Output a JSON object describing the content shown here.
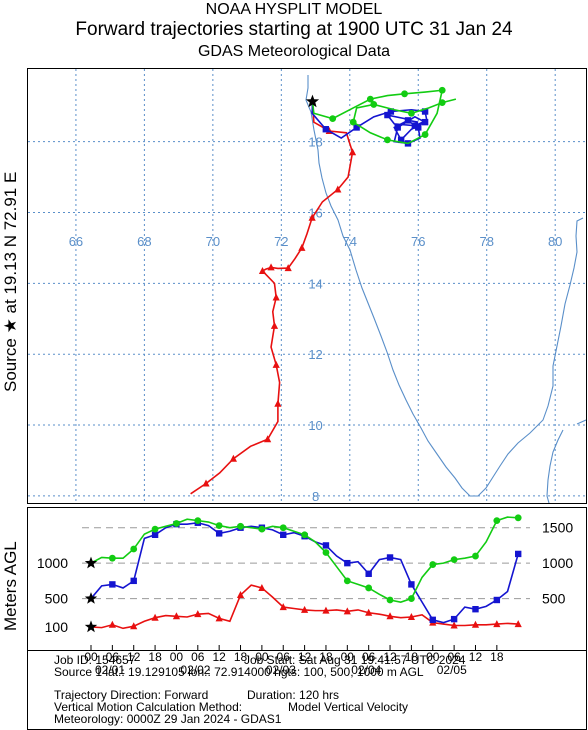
{
  "header": {
    "title_line1": "NOAA HYSPLIT MODEL",
    "title_line2": "Forward trajectories starting at 1900 UTC 31 Jan 24",
    "title_line3": "GDAS Meteorological Data"
  },
  "side_labels": {
    "source_label": "Source ★ at  19.13 N  72.91 E",
    "height_axis_label": "Meters AGL"
  },
  "colors": {
    "h100": "#e81010",
    "h500": "#1414d0",
    "h1000": "#12cc12",
    "grid": "#5a8fc9",
    "coast": "#5a8fc9"
  },
  "chart_data": [
    {
      "type": "line",
      "name": "trajectory-map",
      "xlim": [
        64.6,
        80.9
      ],
      "ylim": [
        7.8,
        20.05
      ],
      "longitude_ticks": [
        66,
        68,
        70,
        72,
        74,
        76,
        78,
        80
      ],
      "longitude_labels": [
        "66",
        "68",
        "70",
        "72",
        "74",
        "76",
        "78",
        "80"
      ],
      "latitude_ticks": [
        8,
        10,
        12,
        14,
        16,
        18
      ],
      "latitude_labels": [
        "8",
        "10",
        "12",
        "14",
        "16",
        "18"
      ],
      "source": {
        "lat": 19.13,
        "lon": 72.91
      },
      "series": [
        {
          "key": "h100",
          "lon": [
            72.91,
            72.95,
            73.4,
            73.9,
            74.08,
            73.95,
            73.65,
            73.2,
            72.9,
            72.75,
            72.6,
            72.4,
            72.2,
            71.9,
            71.7,
            71.55,
            71.45,
            71.8,
            71.85,
            71.75,
            71.8,
            71.7,
            71.85,
            71.95,
            71.9,
            71.9,
            71.6,
            71.1,
            70.6,
            70.2,
            69.8,
            69.35
          ],
          "lat": [
            19.13,
            18.55,
            18.3,
            18.25,
            17.7,
            17.0,
            16.65,
            16.3,
            15.85,
            15.4,
            15.0,
            14.7,
            14.43,
            14.42,
            14.45,
            14.4,
            14.35,
            14.0,
            13.6,
            13.2,
            12.8,
            12.2,
            11.7,
            11.2,
            10.6,
            10.1,
            9.6,
            9.4,
            9.05,
            8.65,
            8.35,
            8.06
          ]
        },
        {
          "key": "h500",
          "lon": [
            72.91,
            72.9,
            73.3,
            73.75,
            74.2,
            74.7,
            75.2,
            75.8,
            76.2,
            76.25,
            75.9,
            75.3,
            75.1,
            75.6,
            76.0,
            76.05,
            75.7,
            75.3,
            75.4,
            75.9,
            76.2,
            75.8,
            75.5,
            75.3,
            75.7,
            76.0
          ],
          "lat": [
            19.13,
            18.8,
            18.35,
            18.1,
            18.4,
            18.7,
            18.85,
            18.9,
            18.85,
            18.6,
            18.45,
            18.5,
            18.75,
            18.65,
            18.4,
            18.1,
            17.95,
            18.0,
            18.4,
            18.7,
            18.55,
            18.35,
            18.05,
            18.4,
            18.6,
            18.55
          ]
        },
        {
          "key": "h1000",
          "lon": [
            72.91,
            72.95,
            73.5,
            74.1,
            74.6,
            75.1,
            75.6,
            76.2,
            76.7,
            76.55,
            76.2,
            75.7,
            75.1,
            74.6,
            74.1,
            74.2,
            74.7,
            75.3,
            75.8,
            76.3,
            76.7,
            77.1
          ],
          "lat": [
            19.13,
            18.8,
            18.65,
            18.95,
            19.2,
            19.3,
            19.35,
            19.4,
            19.45,
            18.8,
            18.2,
            17.95,
            18.05,
            18.25,
            18.55,
            18.95,
            19.05,
            18.9,
            18.8,
            18.95,
            19.1,
            19.2
          ]
        }
      ]
    },
    {
      "type": "line",
      "name": "height-profile",
      "ylabel": "Meters AGL",
      "ylim": [
        0,
        1750
      ],
      "x_tick_labels": [
        "00",
        "06",
        "12",
        "18",
        "00",
        "06",
        "12",
        "18",
        "00",
        "06",
        "12",
        "18",
        "00",
        "06",
        "12",
        "18",
        "00",
        "06",
        "12",
        "18"
      ],
      "date_labels": [
        "02/01",
        "02/02",
        "02/03",
        "02/04",
        "02/05"
      ],
      "y_left_labels": [
        "1000",
        "500",
        "100"
      ],
      "y_right_labels": [
        "1500",
        "1000",
        "500"
      ],
      "series": [
        {
          "key": "h100",
          "hours_after_start": [
            0,
            3,
            6,
            9,
            12,
            15,
            18,
            21,
            24,
            27,
            30,
            33,
            36,
            39,
            42,
            45,
            48,
            51,
            54,
            57,
            60,
            63,
            66,
            69,
            72,
            75,
            78,
            81,
            84,
            87,
            90,
            93,
            96,
            99,
            102,
            105,
            108,
            111,
            114,
            117,
            120
          ],
          "values": [
            100,
            90,
            130,
            80,
            110,
            180,
            230,
            260,
            250,
            240,
            280,
            290,
            220,
            180,
            550,
            690,
            650,
            520,
            380,
            360,
            340,
            330,
            330,
            340,
            320,
            340,
            300,
            280,
            250,
            230,
            240,
            270,
            160,
            140,
            120,
            120,
            130,
            130,
            140,
            150,
            140
          ]
        },
        {
          "key": "h500",
          "hours_after_start": [
            0,
            3,
            6,
            9,
            12,
            15,
            18,
            21,
            24,
            27,
            30,
            33,
            36,
            39,
            42,
            45,
            48,
            51,
            54,
            57,
            60,
            63,
            66,
            69,
            72,
            75,
            78,
            81,
            84,
            87,
            90,
            93,
            96,
            99,
            102,
            105,
            108,
            111,
            114,
            117,
            120
          ],
          "values": [
            500,
            680,
            700,
            650,
            750,
            1350,
            1400,
            1500,
            1550,
            1550,
            1570,
            1530,
            1420,
            1450,
            1500,
            1520,
            1500,
            1470,
            1400,
            1430,
            1380,
            1300,
            1250,
            1100,
            1000,
            1020,
            850,
            1050,
            1080,
            1050,
            700,
            450,
            200,
            160,
            210,
            380,
            350,
            390,
            480,
            600,
            1130
          ]
        },
        {
          "key": "h1000",
          "hours_after_start": [
            0,
            3,
            6,
            9,
            12,
            15,
            18,
            21,
            24,
            27,
            30,
            33,
            36,
            39,
            42,
            45,
            48,
            51,
            54,
            57,
            60,
            63,
            66,
            69,
            72,
            75,
            78,
            81,
            84,
            87,
            90,
            93,
            96,
            99,
            102,
            105,
            108,
            111,
            114,
            117,
            120
          ],
          "values": [
            1000,
            1080,
            1070,
            1070,
            1200,
            1410,
            1480,
            1520,
            1560,
            1620,
            1600,
            1580,
            1530,
            1500,
            1520,
            1500,
            1480,
            1520,
            1500,
            1450,
            1400,
            1300,
            1150,
            950,
            750,
            700,
            650,
            560,
            480,
            450,
            500,
            800,
            980,
            1000,
            1050,
            1070,
            1100,
            1300,
            1600,
            1650,
            1640
          ]
        }
      ]
    }
  ],
  "info": {
    "job_id": "Job ID: 154657",
    "job_start": "Job Start: Sat Aug 31 19:41:57 UTC 2024",
    "source_line": "Source 1 lat.: 19.129105  lon.: 72.914000  hgts: 100, 500, 1000 m AGL",
    "direction": "Trajectory Direction: Forward",
    "duration": "Duration: 120 hrs",
    "vertical_motion": "Vertical Motion Calculation Method:",
    "vertical_motion_value": "Model Vertical Velocity",
    "meteorology": "Meteorology: 0000Z 29 Jan 2024 - GDAS1"
  }
}
